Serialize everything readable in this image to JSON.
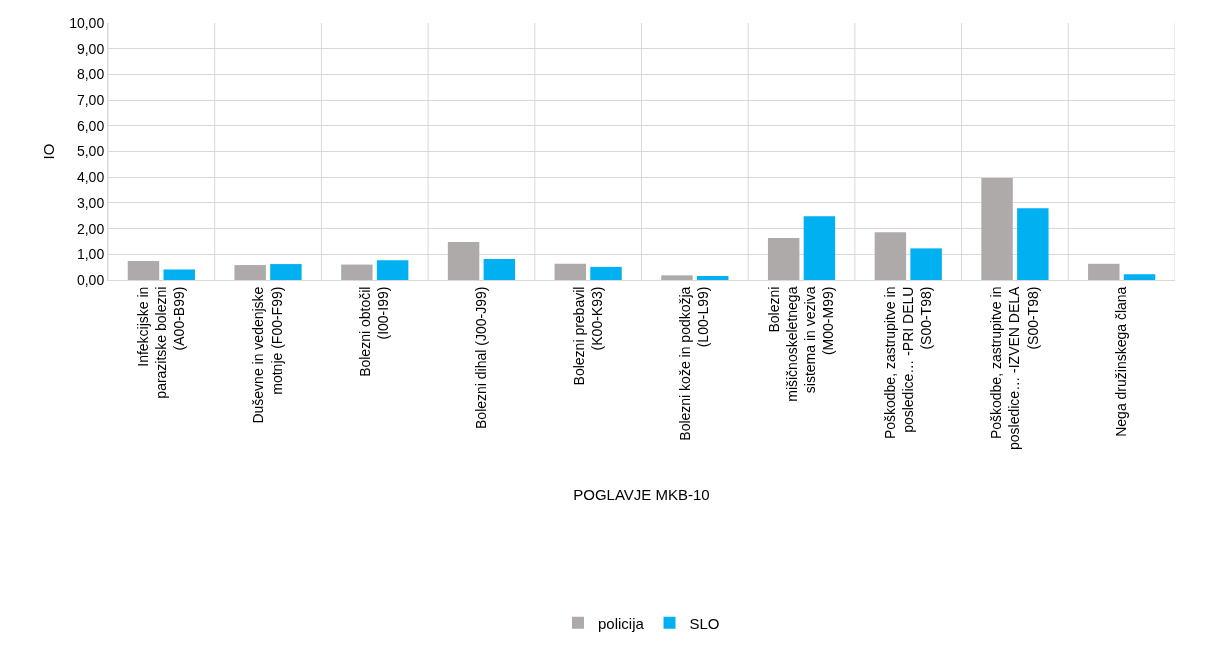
{
  "chart_data": {
    "type": "bar",
    "xlabel": "POGLAVJE MKB-10",
    "ylabel": "IO",
    "categories": [
      "Infekcijske in parazitske bolezni (A00-B99)",
      "Duševne in vedenjske motnje (F00-F99)",
      "Bolezni obtočil (I00-I99)",
      "Bolezni dihal (J00-J99)",
      "Bolezni prebavil (K00-K93)",
      "Bolezni kože in podkožja (L00-L99)",
      "Bolezni mišičnoskeletnega sistema in veziva (M00-M99)",
      "Poškodbe, zastrupitve in posledice… -PRI DELU (S00-T98)",
      "Poškodbe, zastrupitve in posledice… -IZVEN DELA (S00-T98)",
      "Nega družinskega člana"
    ],
    "series": [
      {
        "name": "policija",
        "color": "#aeaaaa",
        "values": [
          0.74,
          0.58,
          0.6,
          1.48,
          0.63,
          0.18,
          1.63,
          1.86,
          3.97,
          0.63
        ]
      },
      {
        "name": "SLO",
        "color": "#00b0f0",
        "values": [
          0.41,
          0.62,
          0.77,
          0.82,
          0.51,
          0.16,
          2.48,
          1.23,
          2.79,
          0.22
        ]
      }
    ],
    "ylim": [
      0,
      10
    ],
    "yticks": [
      {
        "value": 0,
        "label": "0,00"
      },
      {
        "value": 1,
        "label": "1,00"
      },
      {
        "value": 2,
        "label": "2,00"
      },
      {
        "value": 3,
        "label": "3,00"
      },
      {
        "value": 4,
        "label": "4,00"
      },
      {
        "value": 5,
        "label": "5,00"
      },
      {
        "value": 6,
        "label": "6,00"
      },
      {
        "value": 7,
        "label": "7,00"
      },
      {
        "value": 8,
        "label": "8,00"
      },
      {
        "value": 9,
        "label": "9,00"
      },
      {
        "value": 10,
        "label": "10,00"
      }
    ],
    "grid": true,
    "legend": "bottom"
  }
}
